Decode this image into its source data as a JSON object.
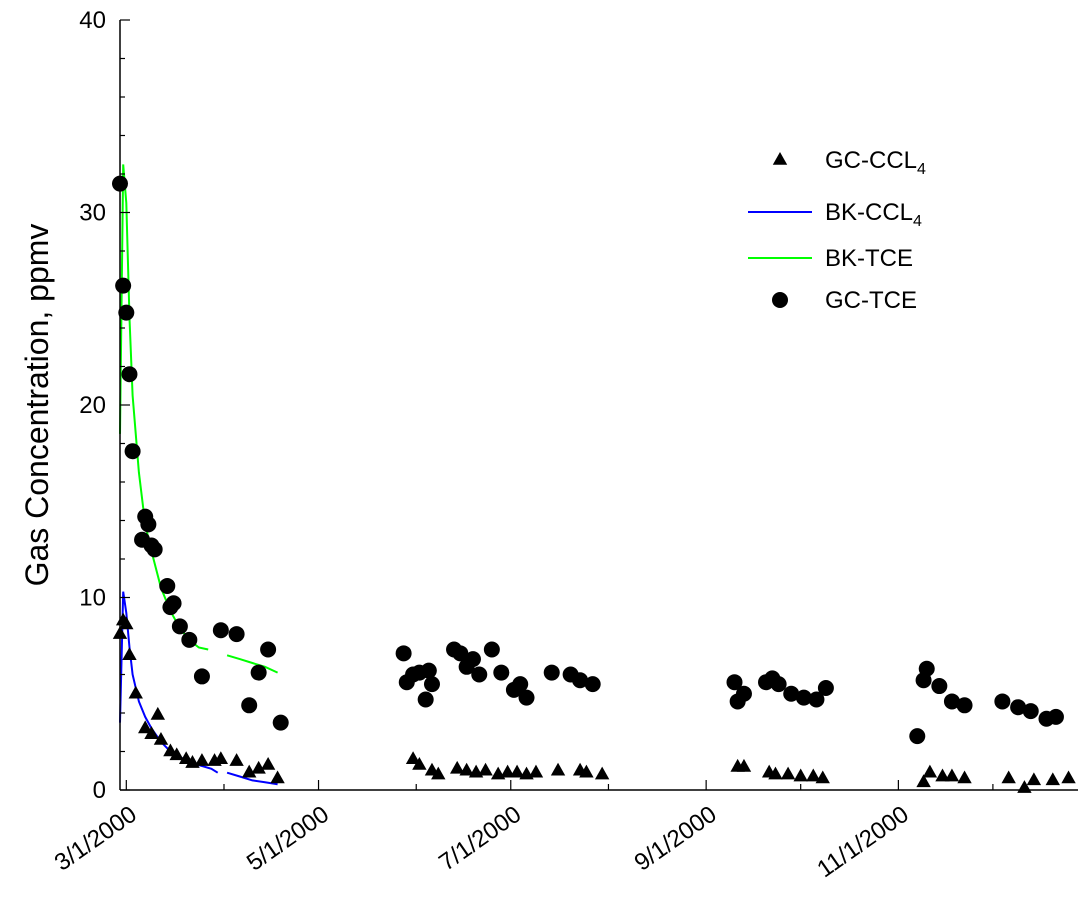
{
  "chart_data": {
    "type": "scatter",
    "title": "",
    "xlabel": "",
    "ylabel": "Gas Concentration, ppmv",
    "ylim": [
      0,
      40
    ],
    "xlim": [
      "2000-02-28",
      "2000-12-28"
    ],
    "x_ticks": [
      "2000-03-01",
      "2000-05-01",
      "2000-07-01",
      "2000-09-01",
      "2000-11-01"
    ],
    "x_tick_labels": [
      "3/1/2000",
      "5/1/2000",
      "7/1/2000",
      "9/1/2000",
      "11/1/2000"
    ],
    "y_ticks": [
      0,
      10,
      20,
      30,
      40
    ],
    "y_tick_labels": [
      "0",
      "10",
      "20",
      "30",
      "40"
    ],
    "grid": false,
    "legend_position": "top-right",
    "series": [
      {
        "name": "GC-CCL4",
        "legend_main": "GC-CCL",
        "legend_sub": "4",
        "kind": "scatter",
        "marker": "triangle",
        "color": "#000000",
        "points": [
          [
            "2000-02-28",
            8.1
          ],
          [
            "2000-02-29",
            8.8
          ],
          [
            "2000-03-01",
            8.6
          ],
          [
            "2000-03-02",
            7.0
          ],
          [
            "2000-03-04",
            5.0
          ],
          [
            "2000-03-07",
            3.2
          ],
          [
            "2000-03-09",
            2.9
          ],
          [
            "2000-03-11",
            3.9
          ],
          [
            "2000-03-12",
            2.6
          ],
          [
            "2000-03-15",
            2.0
          ],
          [
            "2000-03-17",
            1.8
          ],
          [
            "2000-03-20",
            1.6
          ],
          [
            "2000-03-22",
            1.4
          ],
          [
            "2000-03-25",
            1.5
          ],
          [
            "2000-03-29",
            1.5
          ],
          [
            "2000-03-31",
            1.6
          ],
          [
            "2000-04-05",
            1.5
          ],
          [
            "2000-04-09",
            0.9
          ],
          [
            "2000-04-12",
            1.1
          ],
          [
            "2000-04-15",
            1.3
          ],
          [
            "2000-04-18",
            0.6
          ],
          [
            "2000-05-31",
            1.6
          ],
          [
            "2000-06-02",
            1.3
          ],
          [
            "2000-06-06",
            1.0
          ],
          [
            "2000-06-08",
            0.8
          ],
          [
            "2000-06-14",
            1.1
          ],
          [
            "2000-06-17",
            1.0
          ],
          [
            "2000-06-20",
            0.9
          ],
          [
            "2000-06-23",
            1.0
          ],
          [
            "2000-06-27",
            0.8
          ],
          [
            "2000-06-30",
            0.9
          ],
          [
            "2000-07-03",
            0.9
          ],
          [
            "2000-07-06",
            0.8
          ],
          [
            "2000-07-09",
            0.9
          ],
          [
            "2000-07-16",
            1.0
          ],
          [
            "2000-07-23",
            1.0
          ],
          [
            "2000-07-25",
            0.9
          ],
          [
            "2000-07-30",
            0.8
          ],
          [
            "2000-09-11",
            1.2
          ],
          [
            "2000-09-13",
            1.2
          ],
          [
            "2000-09-21",
            0.9
          ],
          [
            "2000-09-23",
            0.8
          ],
          [
            "2000-09-27",
            0.8
          ],
          [
            "2000-10-01",
            0.7
          ],
          [
            "2000-10-05",
            0.7
          ],
          [
            "2000-10-08",
            0.6
          ],
          [
            "2000-11-09",
            0.4
          ],
          [
            "2000-11-11",
            0.9
          ],
          [
            "2000-11-15",
            0.7
          ],
          [
            "2000-11-18",
            0.7
          ],
          [
            "2000-11-22",
            0.6
          ],
          [
            "2000-12-06",
            0.6
          ],
          [
            "2000-12-11",
            0.1
          ],
          [
            "2000-12-14",
            0.5
          ],
          [
            "2000-12-20",
            0.5
          ],
          [
            "2000-12-25",
            0.6
          ]
        ]
      },
      {
        "name": "BK-CCL4",
        "legend_main": "BK-CCL",
        "legend_sub": "4",
        "kind": "line",
        "color": "#0000ff",
        "points": [
          [
            "2000-02-28",
            3.5
          ],
          [
            "2000-02-29",
            10.3
          ],
          [
            "2000-03-01",
            9.2
          ],
          [
            "2000-03-02",
            7.4
          ],
          [
            "2000-03-03",
            6.0
          ],
          [
            "2000-03-05",
            4.6
          ],
          [
            "2000-03-07",
            3.8
          ],
          [
            "2000-03-09",
            3.2
          ],
          [
            "2000-03-12",
            2.5
          ],
          [
            "2000-03-15",
            2.0
          ],
          [
            "2000-03-18",
            1.7
          ],
          [
            "2000-03-21",
            1.5
          ],
          [
            "2000-03-24",
            1.3
          ],
          [
            "2000-03-28",
            1.1
          ],
          [
            "2000-03-30",
            0.9
          ],
          null,
          [
            "2000-04-02",
            0.9
          ],
          [
            "2000-04-06",
            0.7
          ],
          [
            "2000-04-10",
            0.5
          ],
          [
            "2000-04-14",
            0.4
          ],
          [
            "2000-04-18",
            0.3
          ]
        ]
      },
      {
        "name": "BK-TCE",
        "legend_main": "BK-TCE",
        "legend_sub": "",
        "kind": "line",
        "color": "#00ff00",
        "points": [
          [
            "2000-02-28",
            18.5
          ],
          [
            "2000-02-29",
            32.5
          ],
          [
            "2000-03-01",
            30.5
          ],
          [
            "2000-03-02",
            24.5
          ],
          [
            "2000-03-03",
            20.5
          ],
          [
            "2000-03-05",
            16.5
          ],
          [
            "2000-03-07",
            13.8
          ],
          [
            "2000-03-09",
            12.4
          ],
          [
            "2000-03-12",
            10.5
          ],
          [
            "2000-03-15",
            9.3
          ],
          [
            "2000-03-18",
            8.4
          ],
          [
            "2000-03-21",
            7.8
          ],
          [
            "2000-03-24",
            7.4
          ],
          [
            "2000-03-27",
            7.3
          ],
          null,
          [
            "2000-04-02",
            7.0
          ],
          [
            "2000-04-06",
            6.8
          ],
          [
            "2000-04-10",
            6.6
          ],
          [
            "2000-04-14",
            6.4
          ],
          [
            "2000-04-18",
            6.1
          ]
        ]
      },
      {
        "name": "GC-TCE",
        "legend_main": "GC-TCE",
        "legend_sub": "",
        "kind": "scatter",
        "marker": "circle",
        "color": "#000000",
        "points": [
          [
            "2000-02-28",
            31.5
          ],
          [
            "2000-02-29",
            26.2
          ],
          [
            "2000-03-01",
            24.8
          ],
          [
            "2000-03-02",
            21.6
          ],
          [
            "2000-03-03",
            17.6
          ],
          [
            "2000-03-06",
            13.0
          ],
          [
            "2000-03-07",
            14.2
          ],
          [
            "2000-03-08",
            13.8
          ],
          [
            "2000-03-09",
            12.7
          ],
          [
            "2000-03-10",
            12.5
          ],
          [
            "2000-03-14",
            10.6
          ],
          [
            "2000-03-15",
            9.5
          ],
          [
            "2000-03-16",
            9.7
          ],
          [
            "2000-03-18",
            8.5
          ],
          [
            "2000-03-21",
            7.8
          ],
          [
            "2000-03-25",
            5.9
          ],
          [
            "2000-03-31",
            8.3
          ],
          [
            "2000-04-05",
            8.1
          ],
          [
            "2000-04-09",
            4.4
          ],
          [
            "2000-04-12",
            6.1
          ],
          [
            "2000-04-15",
            7.3
          ],
          [
            "2000-04-19",
            3.5
          ],
          [
            "2000-05-28",
            7.1
          ],
          [
            "2000-05-29",
            5.6
          ],
          [
            "2000-05-31",
            6.0
          ],
          [
            "2000-06-02",
            6.1
          ],
          [
            "2000-06-04",
            4.7
          ],
          [
            "2000-06-05",
            6.2
          ],
          [
            "2000-06-06",
            5.5
          ],
          [
            "2000-06-13",
            7.3
          ],
          [
            "2000-06-15",
            7.1
          ],
          [
            "2000-06-17",
            6.4
          ],
          [
            "2000-06-19",
            6.8
          ],
          [
            "2000-06-21",
            6.0
          ],
          [
            "2000-06-25",
            7.3
          ],
          [
            "2000-06-28",
            6.1
          ],
          [
            "2000-07-02",
            5.2
          ],
          [
            "2000-07-04",
            5.5
          ],
          [
            "2000-07-06",
            4.8
          ],
          [
            "2000-07-14",
            6.1
          ],
          [
            "2000-07-20",
            6.0
          ],
          [
            "2000-07-23",
            5.7
          ],
          [
            "2000-07-27",
            5.5
          ],
          [
            "2000-09-10",
            5.6
          ],
          [
            "2000-09-11",
            4.6
          ],
          [
            "2000-09-13",
            5.0
          ],
          [
            "2000-09-20",
            5.6
          ],
          [
            "2000-09-22",
            5.8
          ],
          [
            "2000-09-24",
            5.5
          ],
          [
            "2000-09-28",
            5.0
          ],
          [
            "2000-10-02",
            4.8
          ],
          [
            "2000-10-06",
            4.7
          ],
          [
            "2000-10-09",
            5.3
          ],
          [
            "2000-11-07",
            2.8
          ],
          [
            "2000-11-09",
            5.7
          ],
          [
            "2000-11-10",
            6.3
          ],
          [
            "2000-11-14",
            5.4
          ],
          [
            "2000-11-18",
            4.6
          ],
          [
            "2000-11-22",
            4.4
          ],
          [
            "2000-12-04",
            4.6
          ],
          [
            "2000-12-09",
            4.3
          ],
          [
            "2000-12-13",
            4.1
          ],
          [
            "2000-12-18",
            3.7
          ],
          [
            "2000-12-21",
            3.8
          ]
        ]
      }
    ]
  }
}
